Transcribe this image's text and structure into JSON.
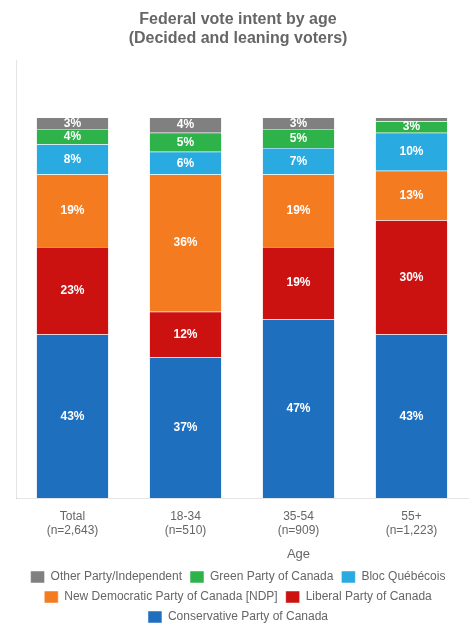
{
  "chart_data": {
    "type": "bar",
    "stacked": true,
    "title": "Federal vote intent by age\n(Decided and leaning voters)",
    "categories": [
      "Total\n(n=2,643)",
      "18-34\n(n=510)",
      "35-54\n(n=909)",
      "55+\n(n=1,223)"
    ],
    "annotations": [
      {
        "text": "Age",
        "under": [
          "18-34\n(n=510)",
          "35-54\n(n=909)",
          "55+\n(n=1,223)"
        ]
      }
    ],
    "series": [
      {
        "name": "Conservative Party of Canada",
        "color": "#1F6FBF",
        "values": [
          43,
          37,
          47,
          43
        ],
        "value_labels": [
          "43%",
          "37%",
          "47%",
          "43%"
        ]
      },
      {
        "name": "Liberal Party of Canada",
        "color": "#CC1111",
        "values": [
          23,
          12,
          19,
          30
        ],
        "value_labels": [
          "23%",
          "12%",
          "19%",
          "30%"
        ]
      },
      {
        "name": "New Democratic Party of Canada [NDP]",
        "color": "#F47B20",
        "values": [
          19,
          36,
          19,
          13
        ],
        "value_labels": [
          "19%",
          "36%",
          "19%",
          "13%"
        ]
      },
      {
        "name": "Bloc Québécois",
        "color": "#29ABE2",
        "values": [
          8,
          6,
          7,
          10
        ],
        "value_labels": [
          "8%",
          "6%",
          "7%",
          "10%"
        ]
      },
      {
        "name": "Green Party of Canada",
        "color": "#2DB34A",
        "values": [
          4,
          5,
          5,
          3
        ],
        "value_labels": [
          "4%",
          "5%",
          "5%",
          "3%"
        ]
      },
      {
        "name": "Other Party/Independent",
        "color": "#808080",
        "values": [
          3,
          4,
          3,
          1
        ],
        "value_labels": [
          "3%",
          "4%",
          "3%",
          null
        ]
      }
    ],
    "ylim": [
      0,
      115
    ],
    "grid": false,
    "legend": "bottom",
    "tick_labels": "x",
    "data_labels": true
  }
}
